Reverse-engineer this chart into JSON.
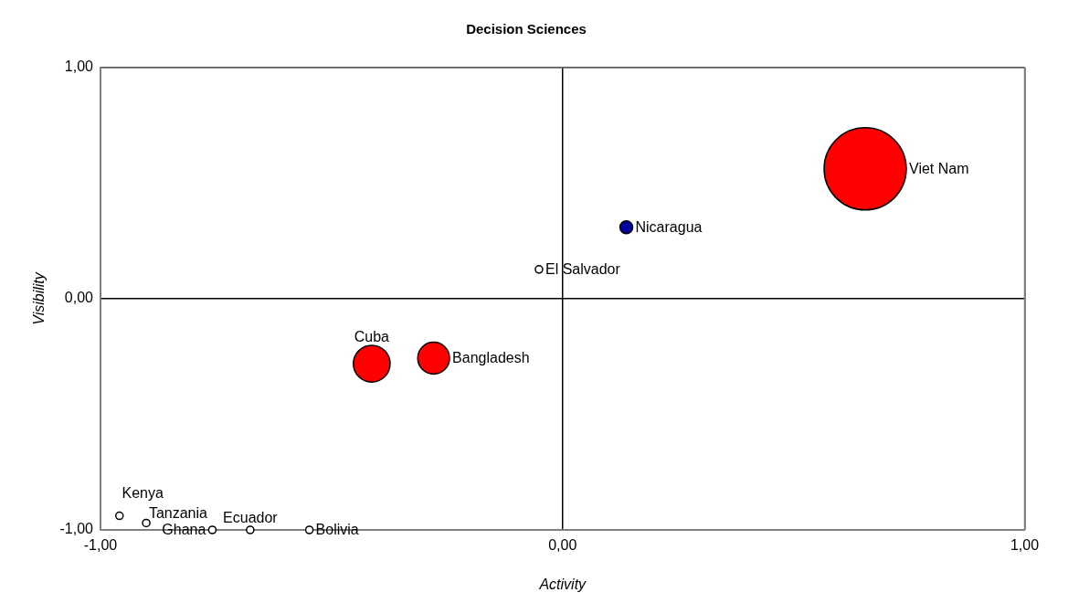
{
  "chart_data": {
    "type": "bubble",
    "title": "Decision Sciences",
    "xlabel": "Activity",
    "ylabel": "Visibility",
    "xlim": [
      -1,
      1
    ],
    "ylim": [
      -1,
      1
    ],
    "xticks": [
      {
        "value": -1,
        "label": "-1,00"
      },
      {
        "value": 0,
        "label": "0,00"
      },
      {
        "value": 1,
        "label": "1,00"
      }
    ],
    "yticks": [
      {
        "value": -1,
        "label": "-1,00"
      },
      {
        "value": 0,
        "label": "0,00"
      },
      {
        "value": 1,
        "label": "1,00"
      }
    ],
    "grid": true,
    "legend": false,
    "series": [
      {
        "name": "Viet Nam",
        "color": "#ff0000",
        "x": [
          0.655
        ],
        "values": [
          0.562
        ],
        "sizes": [
          1
        ]
      },
      {
        "name": "Nicaragua",
        "color": "#0000a0",
        "x": [
          0.138
        ],
        "values": [
          0.309
        ],
        "sizes": [
          0.024
        ]
      },
      {
        "name": "El Salvador",
        "color": "#ffffff",
        "x": [
          -0.051
        ],
        "values": [
          0.127
        ],
        "sizes": [
          0.008
        ]
      },
      {
        "name": "Cuba",
        "color": "#ff0000",
        "x": [
          -0.413
        ],
        "values": [
          -0.281
        ],
        "sizes": [
          0.2
        ]
      },
      {
        "name": "Bangladesh",
        "color": "#ff0000",
        "x": [
          -0.279
        ],
        "values": [
          -0.257
        ],
        "sizes": [
          0.15
        ]
      },
      {
        "name": "Kenya",
        "color": "#ffffff",
        "x": [
          -0.959
        ],
        "values": [
          -0.939
        ],
        "sizes": [
          0.008
        ]
      },
      {
        "name": "Tanzania",
        "color": "#ffffff",
        "x": [
          -0.901
        ],
        "values": [
          -0.97
        ],
        "sizes": [
          0.008
        ]
      },
      {
        "name": "Ghana",
        "color": "#ffffff",
        "x": [
          -0.758
        ],
        "values": [
          -1.0
        ],
        "sizes": [
          0.008
        ]
      },
      {
        "name": "Ecuador",
        "color": "#ffffff",
        "x": [
          -0.676
        ],
        "values": [
          -1.0
        ],
        "sizes": [
          0.008
        ]
      },
      {
        "name": "Bolivia",
        "color": "#ffffff",
        "x": [
          -0.548
        ],
        "values": [
          -1.0
        ],
        "sizes": [
          0.008
        ]
      }
    ]
  }
}
